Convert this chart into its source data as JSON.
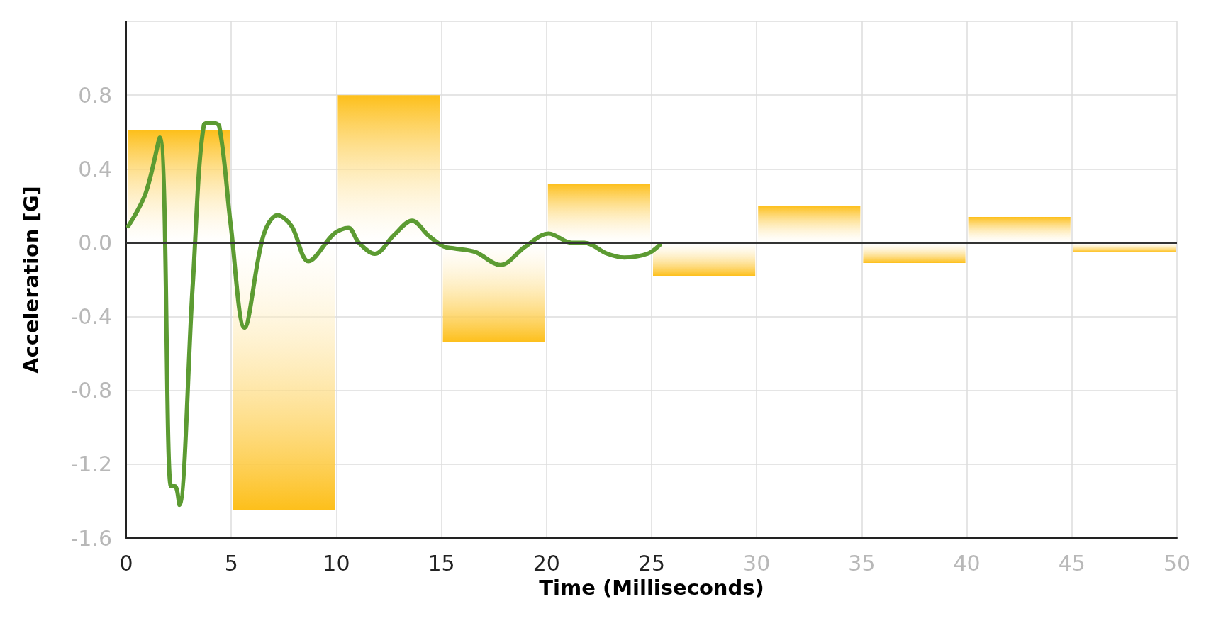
{
  "chart_data": {
    "type": "histogram",
    "xlabel": "Time (Milliseconds)",
    "ylabel": "Acceleration [G]",
    "bins": [
      0,
      5,
      10,
      15,
      20,
      25,
      30,
      35,
      40,
      45,
      50
    ],
    "series": [
      {
        "color": "#fdbf1a",
        "values": [
          0.61,
          -1.45,
          0.8,
          -0.54,
          0.32,
          -0.18,
          0.2,
          -0.11,
          0.14,
          -0.05
        ]
      },
      {
        "type": "line",
        "color": "#5c9b32",
        "x": [
          0.1,
          0.93,
          1.6,
          2.13,
          2.33,
          2.53,
          3.17,
          3.7,
          4.07,
          4.43,
          4.97,
          5.63,
          6.53,
          7.2,
          7.87,
          8.67,
          9.9,
          10.57,
          11.07,
          11.83,
          12.73,
          13.6,
          14.37,
          15.1,
          15.57,
          16.6,
          17.8,
          19.0,
          20.1,
          21.2,
          21.8,
          22.9,
          23.7,
          24.8,
          25.4
        ],
        "values": [
          0.09,
          0.27,
          0.57,
          -1.32,
          -1.32,
          -1.42,
          -0.22,
          0.64,
          0.65,
          0.63,
          0.1,
          -0.46,
          0.04,
          0.15,
          0.09,
          -0.1,
          0.05,
          0.08,
          0.0,
          -0.06,
          0.04,
          0.12,
          0.04,
          -0.02,
          -0.03,
          -0.05,
          -0.12,
          -0.02,
          0.05,
          0.0,
          0.0,
          -0.06,
          -0.08,
          -0.06,
          -0.01
        ]
      }
    ],
    "xlim": [
      0,
      50
    ],
    "xticks": [
      0,
      5,
      10,
      15,
      20,
      25,
      30,
      35,
      40,
      45,
      50
    ],
    "ylim": [
      -1.6,
      1.2
    ],
    "yticks": [
      {
        "value": -1.6,
        "label": "-1.6"
      },
      {
        "value": -1.2,
        "label": "-1.2"
      },
      {
        "value": -0.8,
        "label": "-0.8"
      },
      {
        "value": -0.4,
        "label": "-0.4"
      },
      {
        "value": 0,
        "label": "0.0"
      },
      {
        "value": 0.4,
        "label": "0.4"
      },
      {
        "value": 0.8,
        "label": "0.8"
      },
      {
        "value": 1.2,
        "label": null
      }
    ],
    "ref_lines": [
      {
        "axis": "y",
        "value": 0,
        "color": "#333333"
      }
    ],
    "grid": true,
    "marker": "none",
    "line_style": "solid"
  }
}
